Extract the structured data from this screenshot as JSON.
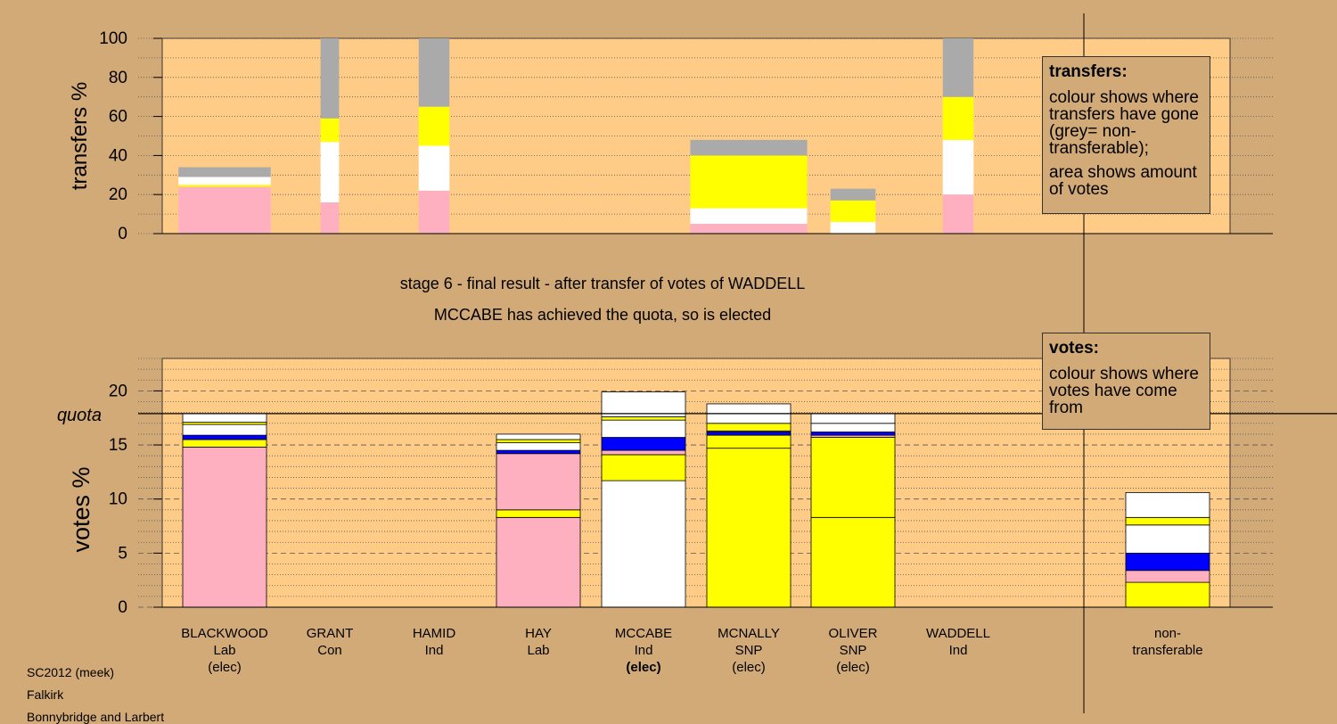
{
  "heading": {
    "line1": "stage 6 - final result - after transfer of votes of WADDELL",
    "line2": "MCCABE has achieved the quota, so is elected"
  },
  "footer": [
    "SC2012 (meek)",
    "Falkirk",
    "Bonnybridge and Larbert"
  ],
  "legend_transfers": {
    "title": "transfers:",
    "line1": "colour shows where transfers have gone (grey= non-transferable);",
    "line2": "area shows amount of votes"
  },
  "legend_votes": {
    "title": "votes:",
    "line1": "colour shows where votes have come from"
  },
  "colors": {
    "background": "#D2AA78",
    "plot": "#FFCC88",
    "Lab": "#FFB0C0",
    "SNP": "#FFFF00",
    "Ind": "#FFFFFF",
    "Con": "#0000FF",
    "nontransferable": "#AAAAAA"
  },
  "chart_data": [
    {
      "type": "bar",
      "name": "transfers",
      "ylabel": "transfers %",
      "ylim": [
        0,
        100
      ],
      "yticks": [
        0,
        20,
        40,
        60,
        80,
        100
      ],
      "bars": [
        {
          "width": 0.45,
          "segments": [
            [
              "Lab",
              24
            ],
            [
              "SNP",
              1
            ],
            [
              "Ind",
              4
            ],
            [
              "nontransferable",
              5
            ]
          ]
        },
        {
          "width": 0.09,
          "segments": [
            [
              "Lab",
              16
            ],
            [
              "Ind",
              31
            ],
            [
              "SNP",
              12
            ],
            [
              "nontransferable",
              41
            ]
          ]
        },
        {
          "width": 0.15,
          "segments": [
            [
              "Lab",
              22
            ],
            [
              "Ind",
              23
            ],
            [
              "SNP",
              20
            ],
            [
              "nontransferable",
              35
            ]
          ]
        },
        {
          "width": 0,
          "segments": []
        },
        {
          "width": 0,
          "segments": []
        },
        {
          "width": 0.57,
          "segments": [
            [
              "Lab",
              5
            ],
            [
              "Ind",
              8
            ],
            [
              "SNP",
              27
            ],
            [
              "nontransferable",
              8
            ]
          ]
        },
        {
          "width": 0.22,
          "segments": [
            [
              "Ind",
              6
            ],
            [
              "SNP",
              11
            ],
            [
              "nontransferable",
              6
            ]
          ]
        },
        {
          "width": 0.15,
          "segments": [
            [
              "Lab",
              20
            ],
            [
              "Ind",
              28
            ],
            [
              "SNP",
              22
            ],
            [
              "nontransferable",
              30
            ]
          ]
        },
        {
          "width": 0,
          "segments": []
        }
      ]
    },
    {
      "type": "bar",
      "name": "votes",
      "ylabel": "votes %",
      "ylim": [
        0,
        23
      ],
      "yticks": [
        0,
        5,
        10,
        15,
        20
      ],
      "quota": 17.9,
      "quota_label": "quota",
      "categories": [
        {
          "lines": [
            "BLACKWOOD",
            "Lab",
            "(elec)"
          ],
          "bold_last": false
        },
        {
          "lines": [
            "GRANT",
            "Con"
          ],
          "bold_last": false
        },
        {
          "lines": [
            "HAMID",
            "Ind"
          ],
          "bold_last": false
        },
        {
          "lines": [
            "HAY",
            "Lab"
          ],
          "bold_last": false
        },
        {
          "lines": [
            "MCCABE",
            "Ind",
            "(elec)"
          ],
          "bold_last": true
        },
        {
          "lines": [
            "MCNALLY",
            "SNP",
            "(elec)"
          ],
          "bold_last": false
        },
        {
          "lines": [
            "OLIVER",
            "SNP",
            "(elec)"
          ],
          "bold_last": false
        },
        {
          "lines": [
            "WADDELL",
            "Ind"
          ],
          "bold_last": false
        },
        {
          "lines": [
            "non-",
            "transferable"
          ],
          "bold_last": false
        }
      ],
      "bars": [
        {
          "segments": [
            [
              "Lab",
              14.8
            ],
            [
              "SNP",
              0.7
            ],
            [
              "Con",
              0.4
            ],
            [
              "Ind",
              1.0
            ],
            [
              "SNP",
              0.2
            ],
            [
              "Ind",
              0.8
            ]
          ]
        },
        {
          "segments": []
        },
        {
          "segments": []
        },
        {
          "segments": [
            [
              "Lab",
              8.3
            ],
            [
              "SNP",
              0.7
            ],
            [
              "Lab",
              5.2
            ],
            [
              "Con",
              0.3
            ],
            [
              "Ind",
              0.7
            ],
            [
              "SNP",
              0.3
            ],
            [
              "Ind",
              0.5
            ]
          ]
        },
        {
          "segments": [
            [
              "Ind",
              11.7
            ],
            [
              "SNP",
              2.4
            ],
            [
              "Lab",
              0.4
            ],
            [
              "Con",
              1.2
            ],
            [
              "Ind",
              1.6
            ],
            [
              "SNP",
              0.3
            ],
            [
              "Ind",
              2.3
            ]
          ]
        },
        {
          "segments": [
            [
              "SNP",
              14.7
            ],
            [
              "SNP",
              1.2
            ],
            [
              "Con",
              0.3
            ],
            [
              "Lab",
              0.1
            ],
            [
              "SNP",
              0.7
            ],
            [
              "Ind",
              0.9
            ],
            [
              "Ind",
              0.9
            ]
          ]
        },
        {
          "segments": [
            [
              "SNP",
              8.3
            ],
            [
              "SNP",
              7.4
            ],
            [
              "Lab",
              0.2
            ],
            [
              "Con",
              0.3
            ],
            [
              "Ind",
              0.8
            ],
            [
              "Ind",
              0.9
            ]
          ]
        },
        {
          "segments": []
        },
        {
          "segments": [
            [
              "SNP",
              2.3
            ],
            [
              "Lab",
              1.1
            ],
            [
              "Con",
              1.6
            ],
            [
              "Ind",
              2.6
            ],
            [
              "SNP",
              0.7
            ],
            [
              "Ind",
              2.3
            ]
          ]
        }
      ]
    }
  ]
}
